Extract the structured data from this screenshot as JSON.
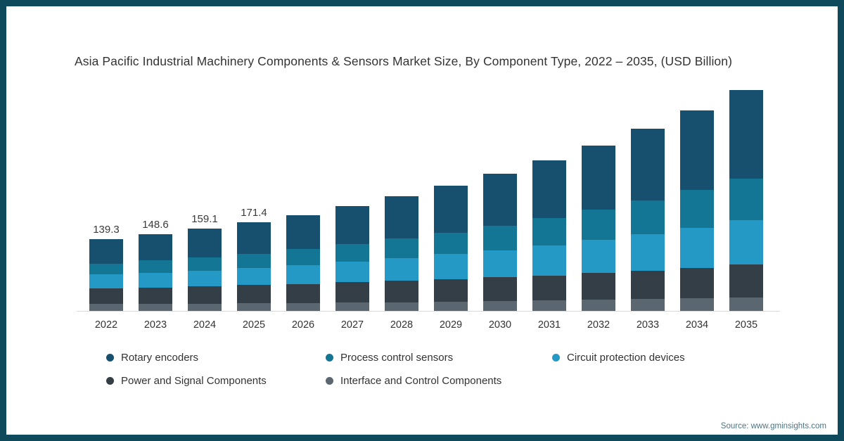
{
  "chart": {
    "title": "Asia Pacific Industrial Machinery Components & Sensors Market Size, By Component Type, 2022 – 2035, (USD Billion)"
  },
  "chart_data": {
    "type": "bar",
    "stacked": true,
    "title": "Asia Pacific Industrial Machinery Components & Sensors Market Size, By Component Type, 2022 – 2035, (USD Billion)",
    "xlabel": "",
    "ylabel": "USD Billion",
    "ylim": [
      0,
      450
    ],
    "grid": false,
    "legend_position": "bottom",
    "categories": [
      "2022",
      "2023",
      "2024",
      "2025",
      "2026",
      "2027",
      "2028",
      "2029",
      "2030",
      "2031",
      "2032",
      "2033",
      "2034",
      "2035"
    ],
    "data_labels": [
      "139.3",
      "148.6",
      "159.1",
      "171.4",
      null,
      null,
      null,
      null,
      null,
      null,
      null,
      null,
      null,
      null
    ],
    "totals": [
      139.3,
      148.6,
      159.1,
      171.4,
      186,
      203,
      222,
      243,
      266,
      292,
      321,
      353,
      389,
      429
    ],
    "series": [
      {
        "name": "Rotary encoders",
        "color": "#17506f",
        "values": [
          47.5,
          51.0,
          55.5,
          60.5,
          66.5,
          74.0,
          82.0,
          91.0,
          101.0,
          112.5,
          125.0,
          139.0,
          155.0,
          172.5
        ]
      },
      {
        "name": "Process control sensors",
        "color": "#147695",
        "values": [
          21.5,
          23.5,
          25.5,
          28.0,
          31.0,
          34.0,
          38.0,
          42.0,
          47.0,
          52.5,
          58.5,
          65.0,
          72.5,
          80.5
        ]
      },
      {
        "name": "Circuit protection devices",
        "color": "#2499c6",
        "values": [
          26.5,
          28.5,
          30.5,
          33.0,
          36.0,
          39.5,
          43.5,
          48.0,
          53.0,
          58.5,
          64.5,
          71.0,
          78.5,
          86.5
        ]
      },
      {
        "name": "Power and Signal Components",
        "color": "#333e47",
        "values": [
          30.5,
          32.0,
          33.5,
          35.5,
          37.5,
          39.5,
          41.5,
          44.0,
          46.0,
          48.5,
          51.5,
          55.0,
          58.5,
          63.0
        ]
      },
      {
        "name": "Interface and Control Components",
        "color": "#5b6770",
        "values": [
          13.3,
          13.6,
          14.1,
          14.4,
          15.0,
          16.0,
          17.0,
          18.0,
          19.0,
          20.0,
          21.5,
          23.0,
          24.5,
          26.5
        ]
      }
    ]
  },
  "footer": {
    "source": "Source: www.gminsights.com"
  }
}
